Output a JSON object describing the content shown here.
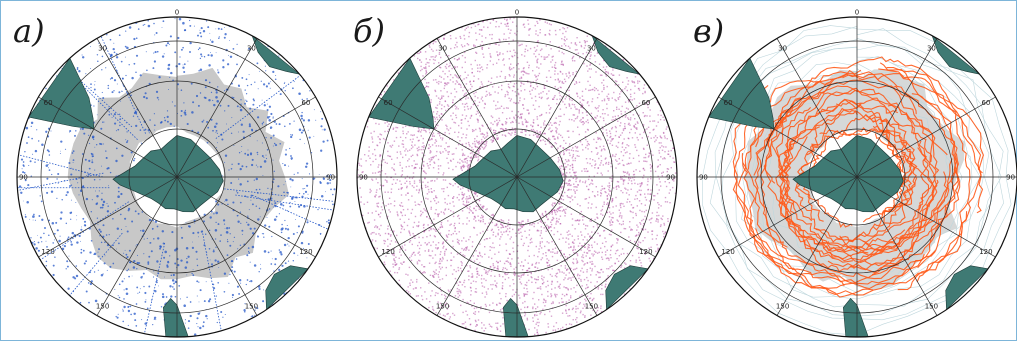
{
  "colors": {
    "land": "#3f7a74",
    "land_edge": "#1f3e3b",
    "ocean": "#ffffff",
    "sea_ice": "#c8c8c8",
    "grid": "#2a2a2a",
    "frame": "#7db5d9",
    "a_obs": "#2457c8",
    "b_obs": "#b65aa8",
    "c_tracks": "#ff5a1a",
    "c_sea_ice": "#8aa0a8"
  },
  "panels": [
    {
      "label": "а)",
      "content": "observations-points",
      "ice_shading": "grey"
    },
    {
      "label": "б)",
      "content": "dense-observations",
      "ice_shading": "none"
    },
    {
      "label": "в)",
      "content": "drift-tracks",
      "ice_shading": "grey"
    }
  ],
  "longitude_ticks": [
    "0",
    "30",
    "60",
    "90",
    "120",
    "150",
    "30",
    "60",
    "90",
    "120",
    "150"
  ]
}
